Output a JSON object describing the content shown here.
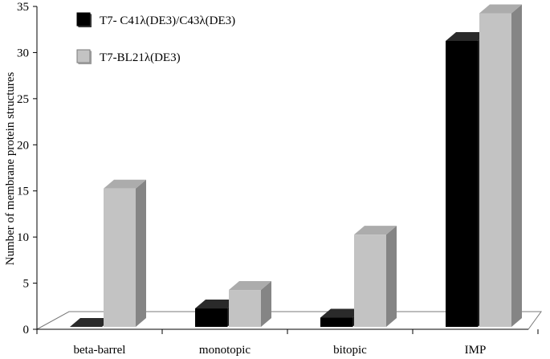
{
  "chart_data": {
    "type": "bar",
    "categories": [
      "beta-barrel",
      "monotopic",
      "bitopic",
      "IMP"
    ],
    "series": [
      {
        "name": "T7- C41λ(DE3)/C43λ(DE3)",
        "values": [
          0,
          2,
          1,
          31
        ],
        "color": "#000000"
      },
      {
        "name": "T7-BL21λ(DE3)",
        "values": [
          15,
          4,
          10,
          34
        ],
        "color": "#c3c3c3"
      }
    ],
    "title": "",
    "xlabel": "",
    "ylabel": "Number of membrane protein structures",
    "ylim": [
      0,
      35
    ],
    "yticks": [
      0,
      5,
      10,
      15,
      20,
      25,
      30,
      35
    ],
    "grid": false,
    "style": "3d-bars",
    "legend_position": "top-left"
  }
}
